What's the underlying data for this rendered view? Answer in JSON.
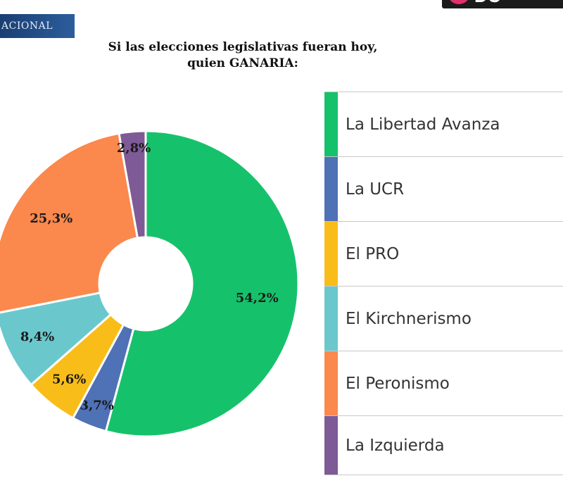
{
  "header": {
    "banner_text": "ACIONAL",
    "logo_text": "DC"
  },
  "chart_data": {
    "type": "pie",
    "variant": "donut",
    "title_line1": "Si las elecciones legislativas fueran hoy,",
    "title_line2": "quien GANARIA:",
    "legend_placement": "right",
    "slices": [
      {
        "name": "La Libertad Avanza",
        "value": 54.2,
        "label": "54,2%",
        "color": "#15c26b"
      },
      {
        "name": "La UCR",
        "value": 3.7,
        "label": "3,7%",
        "color": "#4f71b5"
      },
      {
        "name": "El PRO",
        "value": 5.6,
        "label": "5,6%",
        "color": "#f9bd1a"
      },
      {
        "name": "El Kirchnerismo",
        "value": 8.4,
        "label": "8,4%",
        "color": "#6ac8cd"
      },
      {
        "name": "El Peronismo",
        "value": 25.3,
        "label": "25,3%",
        "color": "#fb884d"
      },
      {
        "name": "La Izquierda",
        "value": 2.8,
        "label": "2,8%",
        "color": "#7e5a96"
      }
    ]
  }
}
